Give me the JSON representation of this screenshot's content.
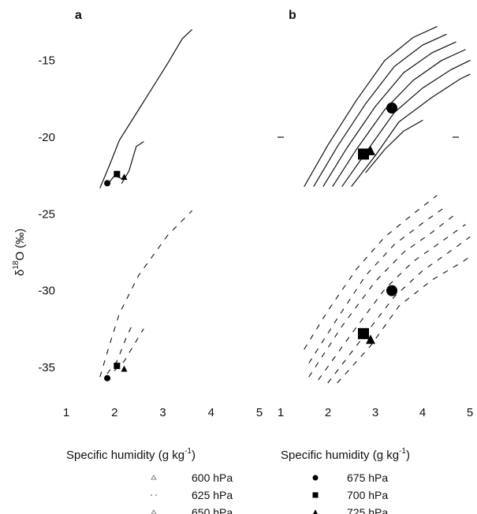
{
  "chart_data": {
    "type": "line",
    "ylabel_parts": {
      "delta": "δ",
      "sup": "18",
      "rest": "O (‰)"
    },
    "xlabel": {
      "main": "Specific humidity (g kg",
      "sup": "-1",
      "end": ")"
    },
    "ylim": [
      -37,
      -12.5
    ],
    "xlim": [
      1,
      5
    ],
    "ticks": {
      "x": [
        1,
        2,
        3,
        4,
        5
      ],
      "y": [
        -15,
        -20,
        -25,
        -30,
        -35
      ]
    },
    "panels": [
      {
        "label": "a",
        "curves": [
          {
            "style": "solid",
            "points": [
              [
                1.7,
                -23.3
              ],
              [
                1.9,
                -21.8
              ],
              [
                2.1,
                -20.2
              ],
              [
                2.5,
                -18.2
              ],
              [
                3.1,
                -15.2
              ],
              [
                3.4,
                -13.6
              ],
              [
                3.6,
                -13.0
              ]
            ]
          },
          {
            "style": "solid",
            "points": [
              [
                1.85,
                -23.1
              ],
              [
                2.0,
                -22.5
              ],
              [
                2.15,
                -22.7
              ]
            ]
          },
          {
            "style": "solid",
            "points": [
              [
                2.15,
                -23.0
              ],
              [
                2.3,
                -22.2
              ],
              [
                2.45,
                -20.6
              ],
              [
                2.6,
                -20.3
              ]
            ]
          },
          {
            "style": "dashed",
            "points": [
              [
                1.7,
                -35.6
              ],
              [
                1.9,
                -33.5
              ],
              [
                2.1,
                -31.5
              ],
              [
                2.5,
                -29.0
              ],
              [
                3.1,
                -26.4
              ],
              [
                3.6,
                -24.8
              ]
            ]
          },
          {
            "style": "dashed",
            "points": [
              [
                1.85,
                -35.4
              ],
              [
                2.05,
                -34.6
              ],
              [
                2.25,
                -33.0
              ],
              [
                2.4,
                -32.0
              ]
            ]
          },
          {
            "style": "dashed",
            "points": [
              [
                2.0,
                -35.2
              ],
              [
                2.2,
                -34.6
              ],
              [
                2.35,
                -33.8
              ],
              [
                2.6,
                -32.5
              ]
            ]
          }
        ],
        "markers": [
          {
            "shape": "circle",
            "x": 1.85,
            "y": -23.0,
            "size": 4
          },
          {
            "shape": "square",
            "x": 2.05,
            "y": -22.4,
            "size": 4
          },
          {
            "shape": "triangle",
            "x": 2.2,
            "y": -22.6,
            "size": 4
          },
          {
            "shape": "circle",
            "x": 1.85,
            "y": -35.7,
            "size": 4
          },
          {
            "shape": "square",
            "x": 2.05,
            "y": -34.9,
            "size": 4
          },
          {
            "shape": "triangle",
            "x": 2.2,
            "y": -35.1,
            "size": 4
          }
        ]
      },
      {
        "label": "b",
        "curves": [
          {
            "style": "solid",
            "points": [
              [
                1.5,
                -23.2
              ],
              [
                2.0,
                -20.5
              ],
              [
                2.6,
                -17.6
              ],
              [
                3.2,
                -15.0
              ],
              [
                3.8,
                -13.5
              ],
              [
                4.3,
                -12.8
              ]
            ]
          },
          {
            "style": "solid",
            "points": [
              [
                1.7,
                -23.2
              ],
              [
                2.2,
                -20.6
              ],
              [
                2.8,
                -17.8
              ],
              [
                3.4,
                -15.4
              ],
              [
                4.0,
                -14.0
              ],
              [
                4.5,
                -13.3
              ]
            ]
          },
          {
            "style": "solid",
            "points": [
              [
                1.9,
                -23.2
              ],
              [
                2.4,
                -20.7
              ],
              [
                3.0,
                -18.0
              ],
              [
                3.6,
                -15.8
              ],
              [
                4.2,
                -14.5
              ],
              [
                4.7,
                -13.8
              ]
            ]
          },
          {
            "style": "solid",
            "points": [
              [
                2.1,
                -23.2
              ],
              [
                2.6,
                -20.8
              ],
              [
                3.2,
                -18.2
              ],
              [
                3.8,
                -16.3
              ],
              [
                4.4,
                -15.0
              ],
              [
                4.9,
                -14.3
              ]
            ]
          },
          {
            "style": "solid",
            "points": [
              [
                2.3,
                -23.2
              ],
              [
                2.8,
                -21.0
              ],
              [
                3.4,
                -18.4
              ],
              [
                4.0,
                -16.8
              ],
              [
                4.6,
                -15.6
              ],
              [
                5.0,
                -15.0
              ]
            ]
          },
          {
            "style": "solid",
            "points": [
              [
                2.5,
                -23.2
              ],
              [
                3.0,
                -21.2
              ],
              [
                3.5,
                -19.0
              ],
              [
                4.2,
                -17.4
              ],
              [
                4.8,
                -16.2
              ],
              [
                5.0,
                -15.9
              ]
            ]
          },
          {
            "style": "solid",
            "points": [
              [
                2.8,
                -22.3
              ],
              [
                3.2,
                -20.8
              ],
              [
                3.6,
                -19.6
              ],
              [
                4.0,
                -18.9
              ]
            ]
          },
          {
            "style": "dashed",
            "points": [
              [
                1.5,
                -33.8
              ],
              [
                2.0,
                -31.3
              ],
              [
                2.6,
                -28.6
              ],
              [
                3.2,
                -26.5
              ],
              [
                3.8,
                -25.0
              ],
              [
                4.3,
                -23.8
              ]
            ]
          },
          {
            "style": "dashed",
            "points": [
              [
                1.6,
                -34.7
              ],
              [
                2.2,
                -31.8
              ],
              [
                2.8,
                -29.0
              ],
              [
                3.4,
                -27.0
              ],
              [
                4.0,
                -25.6
              ],
              [
                4.5,
                -24.5
              ]
            ]
          },
          {
            "style": "dashed",
            "points": [
              [
                1.6,
                -35.6
              ],
              [
                2.3,
                -32.3
              ],
              [
                3.0,
                -29.4
              ],
              [
                3.6,
                -27.5
              ],
              [
                4.2,
                -26.2
              ],
              [
                4.7,
                -25.0
              ]
            ]
          },
          {
            "style": "dashed",
            "points": [
              [
                1.8,
                -35.8
              ],
              [
                2.5,
                -32.8
              ],
              [
                3.2,
                -29.9
              ],
              [
                3.8,
                -28.1
              ],
              [
                4.4,
                -26.8
              ],
              [
                4.9,
                -25.7
              ]
            ]
          },
          {
            "style": "dashed",
            "points": [
              [
                2.0,
                -36.0
              ],
              [
                2.7,
                -33.2
              ],
              [
                3.4,
                -30.4
              ],
              [
                4.0,
                -28.7
              ],
              [
                4.6,
                -27.4
              ],
              [
                5.0,
                -26.5
              ]
            ]
          },
          {
            "style": "dashed",
            "points": [
              [
                2.2,
                -36.0
              ],
              [
                2.9,
                -33.6
              ],
              [
                3.5,
                -31.0
              ],
              [
                4.2,
                -29.3
              ],
              [
                4.8,
                -28.2
              ],
              [
                5.0,
                -27.8
              ]
            ]
          }
        ],
        "markers": [
          {
            "shape": "circle",
            "x": 3.35,
            "y": -18.1,
            "size": 7
          },
          {
            "shape": "square",
            "x": 2.75,
            "y": -21.1,
            "size": 7
          },
          {
            "shape": "triangle",
            "x": 2.9,
            "y": -20.9,
            "size": 6
          },
          {
            "shape": "circle",
            "x": 3.35,
            "y": -30.0,
            "size": 7
          },
          {
            "shape": "square",
            "x": 2.75,
            "y": -32.8,
            "size": 7
          },
          {
            "shape": "triangle",
            "x": 2.9,
            "y": -33.2,
            "size": 6
          }
        ]
      }
    ],
    "legend": [
      {
        "label": "600 hPa",
        "marker": "small-triangle-open"
      },
      {
        "label": "625 hPa",
        "marker": "dots"
      },
      {
        "label": "650 hPa",
        "marker": "small-triangle-open"
      },
      {
        "label": "675 hPa",
        "marker": "circle"
      },
      {
        "label": "700 hPa",
        "marker": "square"
      },
      {
        "label": "725 hPa",
        "marker": "triangle"
      }
    ]
  }
}
